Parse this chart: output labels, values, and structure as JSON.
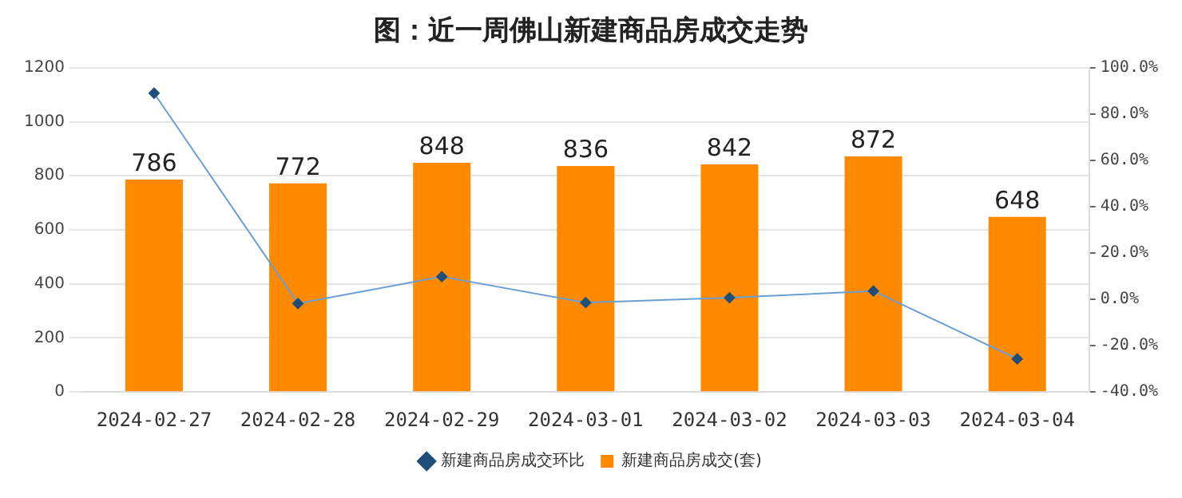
{
  "chart_data": {
    "type": "bar",
    "title": "图：近一周佛山新建商品房成交走势",
    "categories": [
      "2024-02-27",
      "2024-02-28",
      "2024-02-29",
      "2024-03-01",
      "2024-03-02",
      "2024-03-03",
      "2024-03-04"
    ],
    "series": [
      {
        "name": "新建商品房成交(套)",
        "color": "#ff8a00",
        "values": [
          786,
          772,
          848,
          836,
          842,
          872,
          648
        ],
        "value_labels": [
          "786",
          "772",
          "848",
          "836",
          "842",
          "872",
          "648"
        ]
      },
      {
        "name": "新建商品房成交环比",
        "type": "line",
        "axis": "y2",
        "color": "#6a9fd4",
        "marker": "diamond",
        "values": [
          89,
          -1.8,
          9.8,
          -1.4,
          0.7,
          3.6,
          -25.7
        ]
      }
    ],
    "ylim": [
      0,
      1200
    ],
    "yticks": [
      0,
      200,
      400,
      600,
      800,
      1000,
      1200
    ],
    "y2lim": [
      -40,
      100
    ],
    "y2ticks": [
      {
        "value": -40,
        "label": "-40.0%"
      },
      {
        "value": -20,
        "label": "-20.0%"
      },
      {
        "value": 0,
        "label": "0.0%"
      },
      {
        "value": 20,
        "label": "20.0%"
      },
      {
        "value": 40,
        "label": "40.0%"
      },
      {
        "value": 60,
        "label": "60.0%"
      },
      {
        "value": 80,
        "label": "80.0%"
      },
      {
        "value": 100,
        "label": "100.0%"
      }
    ],
    "grid": "y",
    "legend": "bottom"
  }
}
